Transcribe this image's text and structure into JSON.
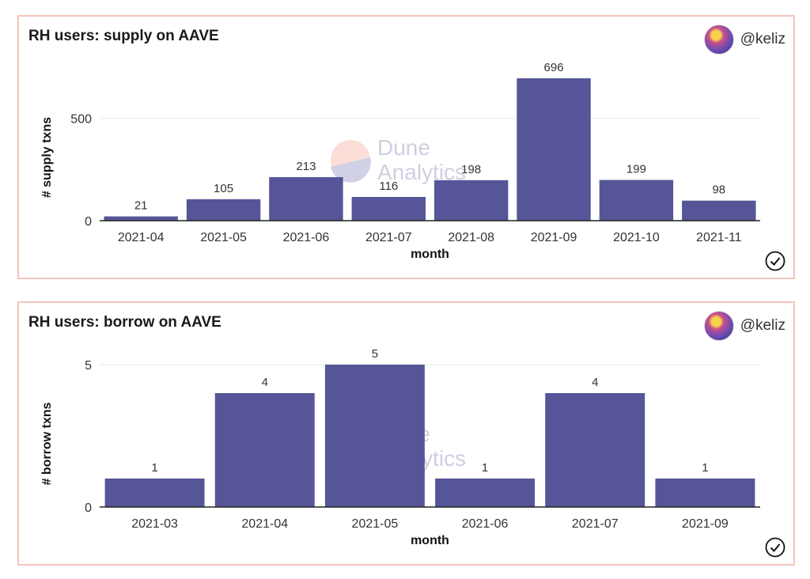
{
  "colors": {
    "bar": "#555597",
    "grid": "#e9e9ee",
    "axis": "#222222",
    "panel_border": "#f3c4bd"
  },
  "watermark": {
    "line1": "Dune",
    "line2": "Analytics"
  },
  "panels": [
    {
      "title": "RH users: supply on AAVE",
      "author": "@keliz",
      "avatar_icon": "user-avatar-icon",
      "verified_icon": "check-circle-icon"
    },
    {
      "title": "RH users: borrow on AAVE",
      "author": "@keliz",
      "avatar_icon": "user-avatar-icon",
      "verified_icon": "check-circle-icon"
    }
  ],
  "chart_data": [
    {
      "type": "bar",
      "title": "RH users: supply on AAVE",
      "categories": [
        "2021-04",
        "2021-05",
        "2021-06",
        "2021-07",
        "2021-08",
        "2021-09",
        "2021-10",
        "2021-11"
      ],
      "values": [
        21,
        105,
        213,
        116,
        198,
        696,
        199,
        98
      ],
      "xlabel": "month",
      "ylabel": "# supply txns",
      "ylim": [
        0,
        696
      ],
      "yticks": [
        0,
        500
      ],
      "grid": true
    },
    {
      "type": "bar",
      "title": "RH users: borrow on AAVE",
      "categories": [
        "2021-03",
        "2021-04",
        "2021-05",
        "2021-06",
        "2021-07",
        "2021-09"
      ],
      "values": [
        1,
        4,
        5,
        1,
        4,
        1
      ],
      "xlabel": "month",
      "ylabel": "# borrow txns",
      "ylim": [
        0,
        5
      ],
      "yticks": [
        0,
        5
      ],
      "grid": true
    }
  ]
}
